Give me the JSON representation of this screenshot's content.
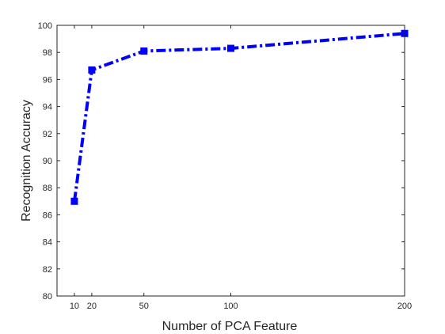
{
  "chart_data": {
    "type": "line",
    "xlabel": "Number of PCA Feature",
    "ylabel": "Recognition Accuracy",
    "x": [
      10,
      20,
      50,
      100,
      200
    ],
    "x_ticks": [
      10,
      20,
      50,
      100,
      200
    ],
    "xlim": [
      0,
      200
    ],
    "ylim": [
      80,
      100
    ],
    "y_ticks": [
      80,
      82,
      84,
      86,
      88,
      90,
      92,
      94,
      96,
      98,
      100
    ],
    "grid": false,
    "legend": "none",
    "series": [
      {
        "values": [
          87.0,
          96.7,
          98.1,
          98.3,
          99.4
        ],
        "color": "#0000ff",
        "line_style": "dash-dot",
        "marker": "square"
      }
    ]
  }
}
